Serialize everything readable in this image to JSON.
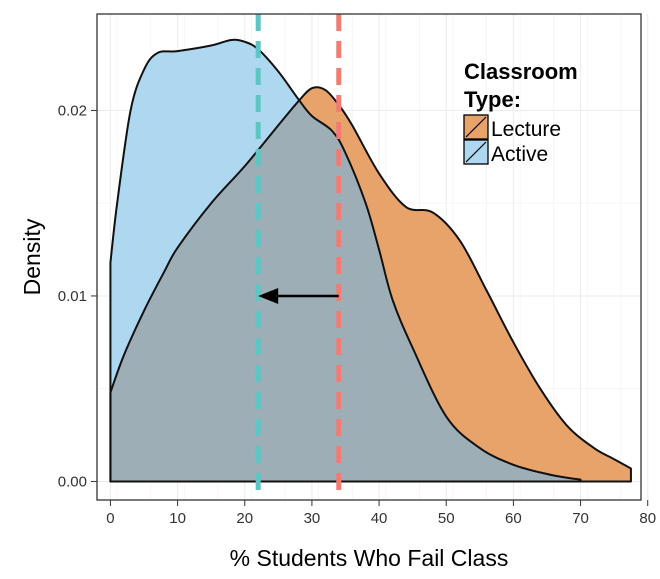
{
  "chart_data": {
    "type": "area",
    "xlabel": "% Students Who Fail Class",
    "ylabel": "Density",
    "xlim": [
      -2,
      79
    ],
    "ylim": [
      -0.001,
      0.0252
    ],
    "x_ticks": [
      0,
      10,
      20,
      30,
      40,
      50,
      60,
      70,
      80
    ],
    "x_tick_labels": [
      "0",
      "10",
      "20",
      "30",
      "40",
      "50",
      "60",
      "70",
      "80"
    ],
    "y_ticks": [
      0.0,
      0.01,
      0.02
    ],
    "y_tick_labels": [
      "0.00",
      "0.01",
      "0.02"
    ],
    "grid": true,
    "legend": {
      "title_lines": [
        "Classroom",
        "Type:"
      ],
      "placement": "top-right"
    },
    "series": [
      {
        "name": "Lecture",
        "color": "#e8a36a",
        "x": [
          0,
          2,
          5,
          8,
          10,
          15,
          20,
          25,
          28,
          30,
          32,
          34,
          36,
          40,
          44,
          48,
          52,
          56,
          60,
          64,
          68,
          72,
          75,
          77.5
        ],
        "y": [
          0.0048,
          0.0068,
          0.0092,
          0.0113,
          0.0126,
          0.015,
          0.017,
          0.0192,
          0.0205,
          0.0212,
          0.0211,
          0.0203,
          0.0192,
          0.0166,
          0.0148,
          0.0145,
          0.013,
          0.0103,
          0.0075,
          0.005,
          0.003,
          0.0018,
          0.0012,
          0.0007
        ],
        "mean": 34
      },
      {
        "name": "Active",
        "color": "#aed8f0",
        "x": [
          0,
          1,
          3,
          5,
          7,
          10,
          15,
          18,
          20,
          22,
          25,
          28,
          30,
          33,
          35,
          38,
          40,
          42,
          45,
          50,
          55,
          60,
          65,
          68,
          70
        ],
        "y": [
          0.0118,
          0.015,
          0.02,
          0.0222,
          0.0231,
          0.0232,
          0.0235,
          0.0238,
          0.0237,
          0.0233,
          0.0221,
          0.0206,
          0.0197,
          0.0189,
          0.0177,
          0.015,
          0.0125,
          0.0098,
          0.0072,
          0.0035,
          0.0018,
          0.0009,
          0.0004,
          0.0002,
          0.0001
        ],
        "mean": 22
      }
    ],
    "annotations": [
      {
        "type": "arrow",
        "from_x": 34,
        "to_x": 22,
        "y": 0.01
      }
    ]
  },
  "colors": {
    "lecture_fill": "#e8a36a",
    "active_fill": "#aed8f0",
    "overlap_fill": "#9eaeb6",
    "lecture_mean_line": "#f07c74",
    "active_mean_line": "#5fc4c4",
    "gridline": "#ebebeb"
  }
}
